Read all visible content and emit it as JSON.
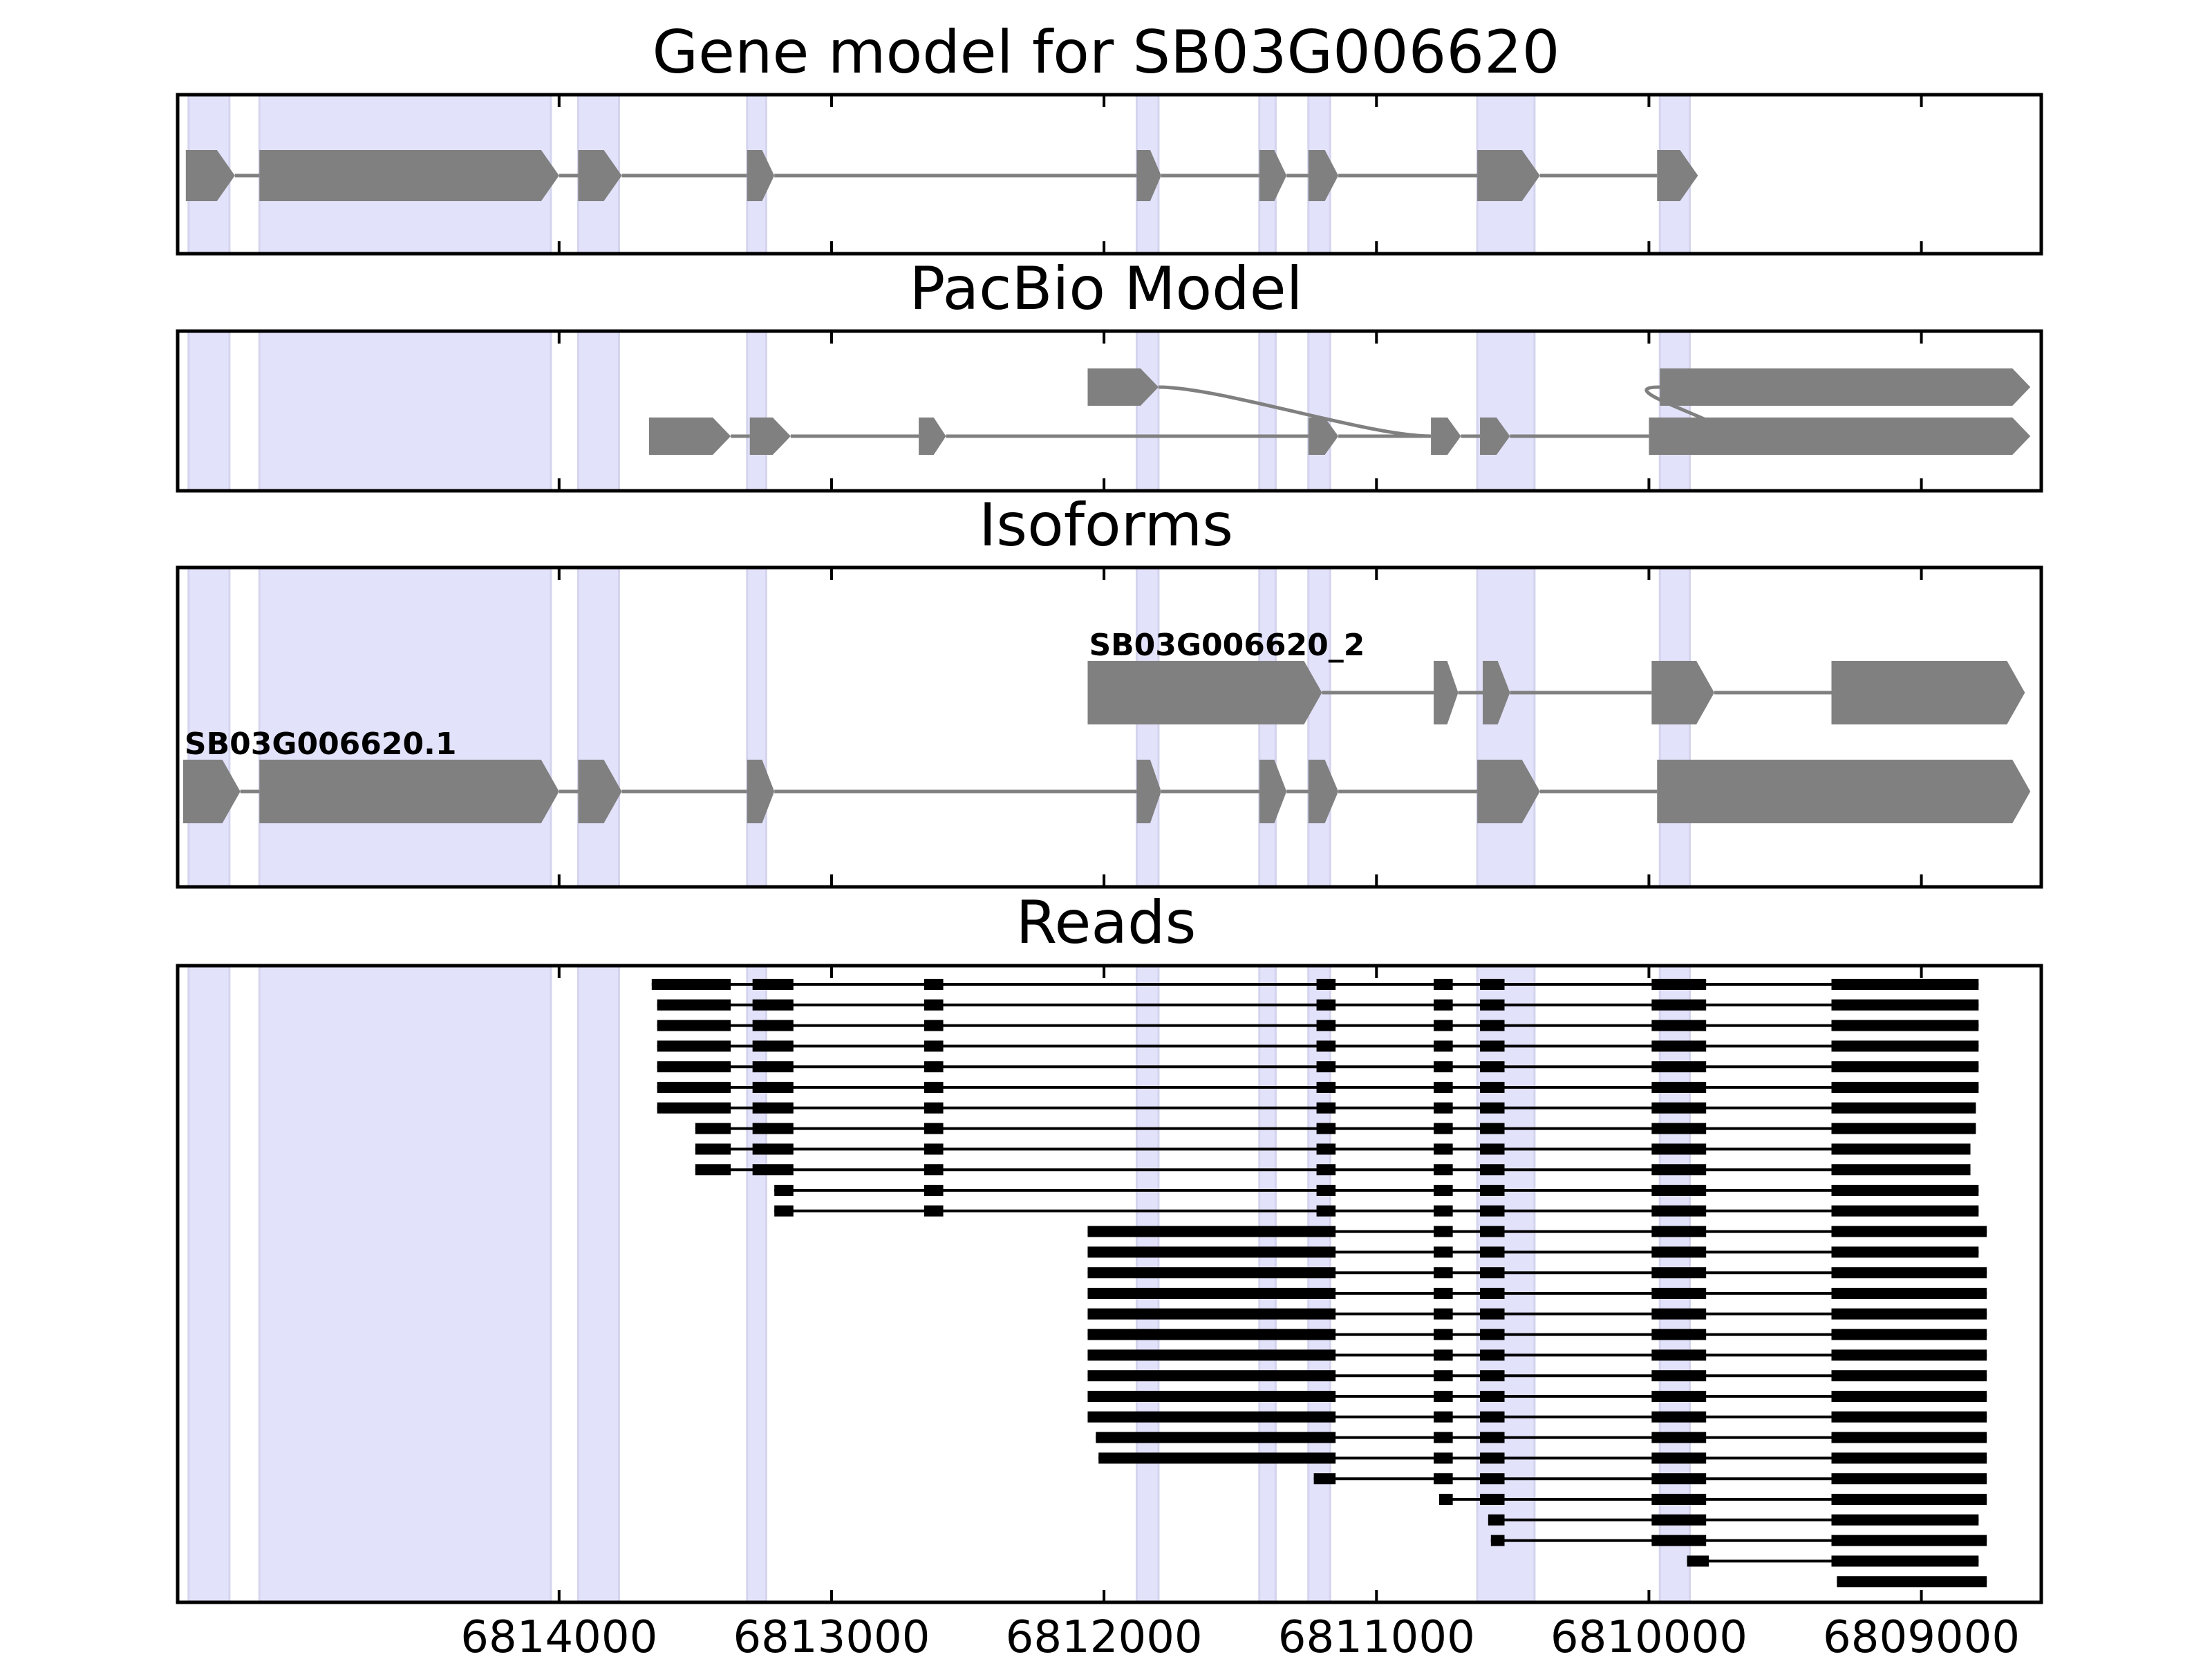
{
  "chart_data": {
    "type": "gene-structure",
    "x_axis": {
      "reversed": true,
      "range": [
        6815400,
        6808560
      ],
      "tick_values": [
        6814000,
        6813000,
        6812000,
        6811000,
        6810000,
        6809000
      ],
      "tick_labels": [
        "6814000",
        "6813000",
        "6812000",
        "6811000",
        "6810000",
        "6809000"
      ]
    },
    "colors": {
      "exon": "#808080",
      "intron": "#808080",
      "highlight": "#e2e2fb",
      "read": "#000000"
    },
    "highlight_exons": [
      [
        6815360,
        6815210
      ],
      [
        6815100,
        6814030
      ],
      [
        6813930,
        6813780
      ],
      [
        6813310,
        6813240
      ],
      [
        6811880,
        6811800
      ],
      [
        6811430,
        6811370
      ],
      [
        6811250,
        6811170
      ],
      [
        6810630,
        6810420
      ],
      [
        6809960,
        6809850
      ]
    ],
    "panels": [
      {
        "title": "Gene model for SB03G006620",
        "kind": "gene",
        "transcripts": [
          {
            "label": "",
            "exons": [
              [
                6815370,
                6815190
              ],
              [
                6815100,
                6814000
              ],
              [
                6813930,
                6813770
              ],
              [
                6813310,
                6813210
              ],
              [
                6811880,
                6811790
              ],
              [
                6811430,
                6811330
              ],
              [
                6811250,
                6811140
              ],
              [
                6810630,
                6810400
              ],
              [
                6809970,
                6809820
              ]
            ]
          }
        ]
      },
      {
        "title": "PacBio Model",
        "kind": "pacbio",
        "transcripts": [
          {
            "label": "",
            "exons": [
              [
                6812060,
                6811800
              ],
              [
                6809960,
                6808600
              ]
            ]
          },
          {
            "label": "",
            "exons": [
              [
                6813670,
                6813370
              ],
              [
                6813300,
                6813150
              ],
              [
                6812680,
                6812580
              ],
              [
                6811250,
                6811140
              ],
              [
                6810800,
                6810690
              ],
              [
                6810620,
                6810510
              ],
              [
                6810000,
                6809760
              ],
              [
                6809960,
                6808600
              ]
            ]
          }
        ]
      },
      {
        "title": "Isoforms",
        "kind": "isoforms",
        "transcripts": [
          {
            "label": "SB03G006620_2",
            "exons": [
              [
                6812060,
                6811200
              ],
              [
                6810790,
                6810700
              ],
              [
                6810610,
                6810510
              ],
              [
                6809990,
                6809760
              ],
              [
                6809330,
                6808620
              ]
            ]
          },
          {
            "label": "SB03G006620.1",
            "exons": [
              [
                6815380,
                6815170
              ],
              [
                6815100,
                6814000
              ],
              [
                6813930,
                6813770
              ],
              [
                6813310,
                6813210
              ],
              [
                6811880,
                6811790
              ],
              [
                6811430,
                6811330
              ],
              [
                6811250,
                6811140
              ],
              [
                6810630,
                6810400
              ],
              [
                6809970,
                6808600
              ]
            ]
          }
        ]
      },
      {
        "title": "Reads",
        "kind": "reads",
        "reads": [
          [
            [
              6813660,
              6813370
            ],
            [
              6813290,
              6813140
            ],
            [
              6812660,
              6812590
            ],
            [
              6811220,
              6811150
            ],
            [
              6810790,
              6810720
            ],
            [
              6810620,
              6810530
            ],
            [
              6809990,
              6809790
            ],
            [
              6809330,
              6808790
            ]
          ],
          [
            [
              6813640,
              6813370
            ],
            [
              6813290,
              6813140
            ],
            [
              6812660,
              6812590
            ],
            [
              6811220,
              6811150
            ],
            [
              6810790,
              6810720
            ],
            [
              6810620,
              6810530
            ],
            [
              6809990,
              6809790
            ],
            [
              6809330,
              6808790
            ]
          ],
          [
            [
              6813640,
              6813370
            ],
            [
              6813290,
              6813140
            ],
            [
              6812660,
              6812590
            ],
            [
              6811220,
              6811150
            ],
            [
              6810790,
              6810720
            ],
            [
              6810620,
              6810530
            ],
            [
              6809990,
              6809790
            ],
            [
              6809330,
              6808790
            ]
          ],
          [
            [
              6813640,
              6813370
            ],
            [
              6813290,
              6813140
            ],
            [
              6812660,
              6812590
            ],
            [
              6811220,
              6811150
            ],
            [
              6810790,
              6810720
            ],
            [
              6810620,
              6810530
            ],
            [
              6809990,
              6809790
            ],
            [
              6809330,
              6808790
            ]
          ],
          [
            [
              6813640,
              6813370
            ],
            [
              6813290,
              6813140
            ],
            [
              6812660,
              6812590
            ],
            [
              6811220,
              6811150
            ],
            [
              6810790,
              6810720
            ],
            [
              6810620,
              6810530
            ],
            [
              6809990,
              6809790
            ],
            [
              6809330,
              6808790
            ]
          ],
          [
            [
              6813640,
              6813370
            ],
            [
              6813290,
              6813140
            ],
            [
              6812660,
              6812590
            ],
            [
              6811220,
              6811150
            ],
            [
              6810790,
              6810720
            ],
            [
              6810620,
              6810530
            ],
            [
              6809990,
              6809790
            ],
            [
              6809330,
              6808790
            ]
          ],
          [
            [
              6813640,
              6813370
            ],
            [
              6813290,
              6813140
            ],
            [
              6812660,
              6812590
            ],
            [
              6811220,
              6811150
            ],
            [
              6810790,
              6810720
            ],
            [
              6810620,
              6810530
            ],
            [
              6809990,
              6809790
            ],
            [
              6809330,
              6808800
            ]
          ],
          [
            [
              6813500,
              6813370
            ],
            [
              6813290,
              6813140
            ],
            [
              6812660,
              6812590
            ],
            [
              6811220,
              6811150
            ],
            [
              6810790,
              6810720
            ],
            [
              6810620,
              6810530
            ],
            [
              6809990,
              6809790
            ],
            [
              6809330,
              6808800
            ]
          ],
          [
            [
              6813500,
              6813370
            ],
            [
              6813290,
              6813140
            ],
            [
              6812660,
              6812590
            ],
            [
              6811220,
              6811150
            ],
            [
              6810790,
              6810720
            ],
            [
              6810620,
              6810530
            ],
            [
              6809990,
              6809790
            ],
            [
              6809330,
              6808820
            ]
          ],
          [
            [
              6813500,
              6813370
            ],
            [
              6813290,
              6813140
            ],
            [
              6812660,
              6812590
            ],
            [
              6811220,
              6811150
            ],
            [
              6810790,
              6810720
            ],
            [
              6810620,
              6810530
            ],
            [
              6809990,
              6809790
            ],
            [
              6809330,
              6808820
            ]
          ],
          [
            [
              6813210,
              6813140
            ],
            [
              6812660,
              6812590
            ],
            [
              6811220,
              6811150
            ],
            [
              6810790,
              6810720
            ],
            [
              6810620,
              6810530
            ],
            [
              6809990,
              6809790
            ],
            [
              6809330,
              6808790
            ]
          ],
          [
            [
              6813210,
              6813140
            ],
            [
              6812660,
              6812590
            ],
            [
              6811220,
              6811150
            ],
            [
              6810790,
              6810720
            ],
            [
              6810620,
              6810530
            ],
            [
              6809990,
              6809790
            ],
            [
              6809330,
              6808790
            ]
          ],
          [
            [
              6812060,
              6811150
            ],
            [
              6810790,
              6810720
            ],
            [
              6810620,
              6810530
            ],
            [
              6809990,
              6809790
            ],
            [
              6809330,
              6808760
            ]
          ],
          [
            [
              6812060,
              6811150
            ],
            [
              6810790,
              6810720
            ],
            [
              6810620,
              6810530
            ],
            [
              6809990,
              6809790
            ],
            [
              6809330,
              6808790
            ]
          ],
          [
            [
              6812060,
              6811150
            ],
            [
              6810790,
              6810720
            ],
            [
              6810620,
              6810530
            ],
            [
              6809990,
              6809790
            ],
            [
              6809330,
              6808760
            ]
          ],
          [
            [
              6812060,
              6811150
            ],
            [
              6810790,
              6810720
            ],
            [
              6810620,
              6810530
            ],
            [
              6809990,
              6809790
            ],
            [
              6809330,
              6808760
            ]
          ],
          [
            [
              6812060,
              6811150
            ],
            [
              6810790,
              6810720
            ],
            [
              6810620,
              6810530
            ],
            [
              6809990,
              6809790
            ],
            [
              6809330,
              6808760
            ]
          ],
          [
            [
              6812060,
              6811150
            ],
            [
              6810790,
              6810720
            ],
            [
              6810620,
              6810530
            ],
            [
              6809990,
              6809790
            ],
            [
              6809330,
              6808760
            ]
          ],
          [
            [
              6812060,
              6811150
            ],
            [
              6810790,
              6810720
            ],
            [
              6810620,
              6810530
            ],
            [
              6809990,
              6809790
            ],
            [
              6809330,
              6808760
            ]
          ],
          [
            [
              6812060,
              6811150
            ],
            [
              6810790,
              6810720
            ],
            [
              6810620,
              6810530
            ],
            [
              6809990,
              6809790
            ],
            [
              6809330,
              6808760
            ]
          ],
          [
            [
              6812060,
              6811150
            ],
            [
              6810790,
              6810720
            ],
            [
              6810620,
              6810530
            ],
            [
              6809990,
              6809790
            ],
            [
              6809330,
              6808760
            ]
          ],
          [
            [
              6812060,
              6811150
            ],
            [
              6810790,
              6810720
            ],
            [
              6810620,
              6810530
            ],
            [
              6809990,
              6809790
            ],
            [
              6809330,
              6808760
            ]
          ],
          [
            [
              6812030,
              6811150
            ],
            [
              6810790,
              6810720
            ],
            [
              6810620,
              6810530
            ],
            [
              6809990,
              6809790
            ],
            [
              6809330,
              6808760
            ]
          ],
          [
            [
              6812020,
              6811150
            ],
            [
              6810790,
              6810720
            ],
            [
              6810620,
              6810530
            ],
            [
              6809990,
              6809790
            ],
            [
              6809330,
              6808760
            ]
          ],
          [
            [
              6811230,
              6811150
            ],
            [
              6810790,
              6810720
            ],
            [
              6810620,
              6810530
            ],
            [
              6809990,
              6809790
            ],
            [
              6809330,
              6808760
            ]
          ],
          [
            [
              6810770,
              6810720
            ],
            [
              6810620,
              6810530
            ],
            [
              6809990,
              6809790
            ],
            [
              6809330,
              6808760
            ]
          ],
          [
            [
              6810590,
              6810530
            ],
            [
              6809990,
              6809790
            ],
            [
              6809330,
              6808790
            ]
          ],
          [
            [
              6810580,
              6810530
            ],
            [
              6809990,
              6809790
            ],
            [
              6809330,
              6808760
            ]
          ],
          [
            [
              6809860,
              6809780
            ],
            [
              6809330,
              6808790
            ]
          ],
          [
            [
              6809310,
              6808760
            ]
          ]
        ]
      }
    ]
  }
}
